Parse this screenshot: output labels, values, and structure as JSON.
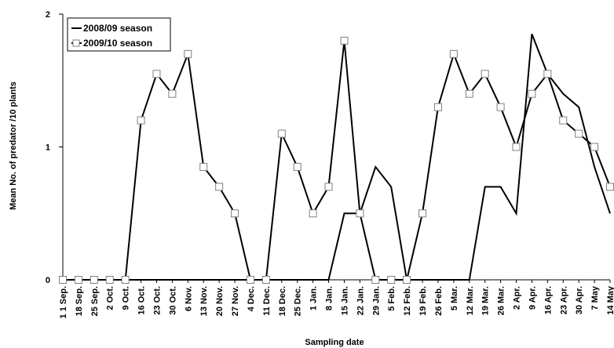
{
  "chart_data": {
    "type": "line",
    "title": "",
    "xlabel": "Sampling date",
    "ylabel": "Mean No. of predator /10 plants",
    "ylim": [
      0,
      2
    ],
    "yticks": [
      "0",
      "1",
      "2"
    ],
    "grid": false,
    "legend_position": "top-left",
    "categories": [
      "1 1 Sep.",
      "18 Sep.",
      "25 Sep.",
      "2 Oct.",
      "9 Oct.",
      "16 Oct.",
      "23 Oct.",
      "30 Oct.",
      "6 Nov.",
      "13 Nov.",
      "20 Nov.",
      "27 Nov.",
      "4 Dec.",
      "11 Dec.",
      "18 Dec.",
      "25 Dec.",
      "1 Jan.",
      "8 Jan.",
      "15 Jan.",
      "22 Jan.",
      "29 Jan.",
      "5 Feb.",
      "12 Feb.",
      "19 Feb.",
      "26 Feb.",
      "5 Mar.",
      "12 Mar.",
      "19 Mar.",
      "26 Mar.",
      "2 Apr.",
      "9 Apr.",
      "16 Apr.",
      "23 Apr.",
      "30 Apr.",
      "7 May",
      "14 May"
    ],
    "series": [
      {
        "name": "2008/09 season",
        "marker": "none",
        "values": [
          0,
          0,
          0,
          0,
          0,
          0,
          0,
          0,
          0,
          0,
          0,
          0,
          0,
          0,
          0,
          0,
          0,
          0,
          0.5,
          0.5,
          0.85,
          0.7,
          0,
          0,
          0,
          0,
          0,
          0.7,
          0.7,
          0.5,
          1.85,
          1.55,
          1.4,
          1.3,
          0.85,
          0.5
        ]
      },
      {
        "name": "2009/10 season",
        "marker": "square",
        "values": [
          0,
          0,
          0,
          0,
          0,
          1.2,
          1.55,
          1.4,
          1.7,
          0.85,
          0.7,
          0.5,
          0,
          0,
          1.1,
          0.85,
          0.5,
          0.7,
          1.8,
          0.5,
          0,
          0,
          0,
          0.5,
          1.3,
          1.7,
          1.4,
          1.55,
          1.3,
          1,
          1.4,
          1.55,
          1.2,
          1.1,
          1,
          0.7
        ]
      }
    ],
    "colors": {
      "line": "#000000",
      "marker_stroke": "#808080",
      "background": "#ffffff"
    }
  }
}
